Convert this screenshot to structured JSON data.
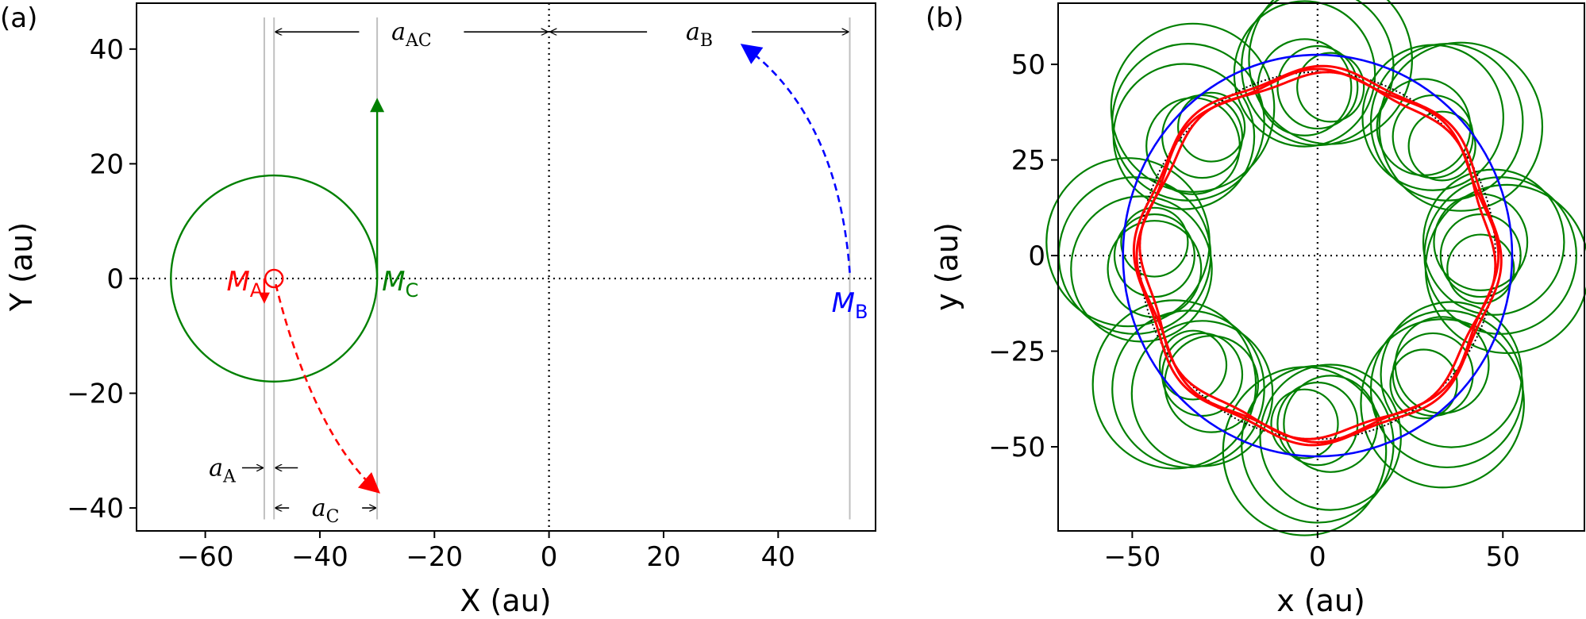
{
  "chart_data": [
    {
      "panel_label": "(a)",
      "type": "line",
      "xlabel": "X (au)",
      "ylabel": "Y (au)",
      "xlim": [
        -72,
        57
      ],
      "ylim": [
        -44,
        48
      ],
      "xticks": [
        -60,
        -40,
        -20,
        0,
        20,
        40
      ],
      "yticks": [
        -40,
        -20,
        0,
        20,
        40
      ],
      "grid": false,
      "colors": {
        "A": "#ff0000",
        "B": "#0000ff",
        "C": "#008000",
        "guides": "#c0c0c0"
      },
      "circle_C": {
        "center": [
          -48,
          0
        ],
        "radius": 18
      },
      "small_circle_A": {
        "center": [
          -48,
          0
        ],
        "radius": 1.6
      },
      "guide_lines_x": [
        -49.7,
        -48,
        -30,
        52.5
      ],
      "masses": [
        {
          "name": "M",
          "sub": "A",
          "x": -48,
          "y": 0,
          "color": "#ff0000"
        },
        {
          "name": "M",
          "sub": "B",
          "x": 52.5,
          "y": 0,
          "color": "#0000ff"
        },
        {
          "name": "M",
          "sub": "C",
          "x": -30,
          "y": 0,
          "color": "#008000"
        }
      ],
      "annotations": [
        {
          "symbol": "a",
          "sub": "AC",
          "from_x": -48,
          "to_x": 0,
          "y": 43
        },
        {
          "symbol": "a",
          "sub": "B",
          "from_x": 0,
          "to_x": 52.5,
          "y": 43
        },
        {
          "symbol": "a",
          "sub": "A",
          "from_x": -49.7,
          "to_x": -48,
          "y": -33
        },
        {
          "symbol": "a",
          "sub": "C",
          "from_x": -48,
          "to_x": -30,
          "y": -40
        }
      ],
      "velocity_arrows": [
        {
          "body": "A",
          "style": "solid",
          "from": [
            -49.7,
            0
          ],
          "to": [
            -49.7,
            -4
          ]
        },
        {
          "body": "C",
          "style": "solid",
          "from": [
            -30,
            0
          ],
          "to": [
            -30,
            31
          ]
        },
        {
          "body": "A",
          "style": "dashed",
          "points": [
            [
              -47.7,
              -1
            ],
            [
              -44,
              -16
            ],
            [
              -38,
              -30
            ],
            [
              -30,
              -37
            ]
          ]
        },
        {
          "body": "B",
          "style": "dashed",
          "points": [
            [
              52.5,
              1
            ],
            [
              51,
              22
            ],
            [
              43,
              34
            ],
            [
              34,
              40.5
            ]
          ]
        }
      ]
    },
    {
      "panel_label": "(b)",
      "type": "line",
      "xlabel": "x (au)",
      "ylabel": "y (au)",
      "xlim": [
        -70,
        72
      ],
      "ylim": [
        -72,
        66
      ],
      "xticks": [
        -50,
        0,
        50
      ],
      "yticks": [
        -50,
        -25,
        0,
        25,
        50
      ],
      "grid": false,
      "colors": {
        "A": "#ff0000",
        "B": "#0000ff",
        "C": "#008000",
        "reference": "#000000"
      },
      "reference_circle": {
        "radius": 48,
        "style": "dotted"
      },
      "orbit_B": {
        "radius": 52.5
      },
      "orbit_A": {
        "mean_radius": 47.5,
        "lobes": 8
      },
      "loops_C": {
        "count": 8,
        "center_radius": 44,
        "loop_radius_min": 9,
        "loop_radius_max": 22,
        "turns_per_loop": 3
      }
    }
  ]
}
